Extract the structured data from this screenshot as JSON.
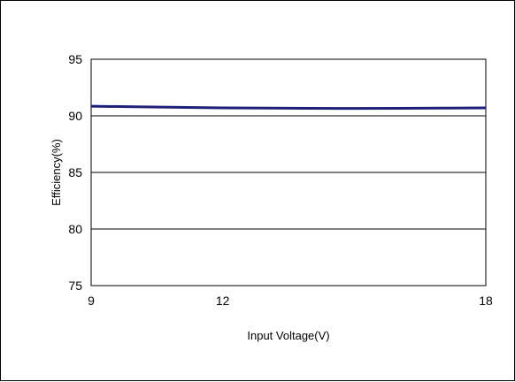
{
  "chart_data": {
    "type": "line",
    "title": "",
    "xlabel": "Input Voltage(V)",
    "ylabel": "Efficiency(%)",
    "xlim": [
      9,
      18
    ],
    "ylim": [
      75,
      95
    ],
    "xticks": [
      9,
      12,
      18
    ],
    "yticks": [
      75,
      80,
      85,
      90,
      95
    ],
    "grid": "horizontal",
    "legend": "none",
    "series": [
      {
        "color": "#1f1f7a",
        "x": [
          9,
          10,
          11,
          12,
          13,
          14,
          15,
          16,
          17,
          18
        ],
        "y": [
          90.85,
          90.8,
          90.75,
          90.7,
          90.68,
          90.66,
          90.65,
          90.66,
          90.68,
          90.7
        ]
      }
    ]
  }
}
